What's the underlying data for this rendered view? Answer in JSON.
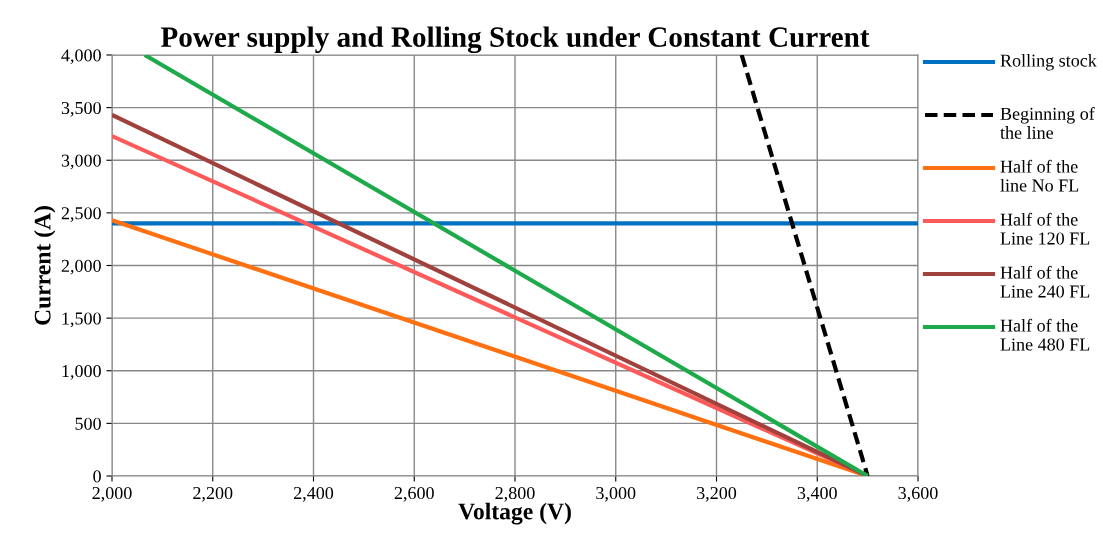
{
  "chart_data": {
    "type": "line",
    "title": "Power supply and Rolling Stock under Constant Current",
    "xlabel": "Voltage (V)",
    "ylabel": "Current (A)",
    "xlim": [
      2000,
      3600
    ],
    "xticks": [
      {
        "value": 2000,
        "label": "2,000"
      },
      {
        "value": 2200,
        "label": "2,200"
      },
      {
        "value": 2400,
        "label": "2,400"
      },
      {
        "value": 2600,
        "label": "2,600"
      },
      {
        "value": 2800,
        "label": "2,800"
      },
      {
        "value": 3000,
        "label": "3,000"
      },
      {
        "value": 3200,
        "label": "3,200"
      },
      {
        "value": 3400,
        "label": "3,400"
      },
      {
        "value": 3600,
        "label": "3,600"
      }
    ],
    "ylim": [
      0,
      4000
    ],
    "yticks": [
      0,
      500,
      {
        "value": 1000,
        "label": "1,000"
      },
      {
        "value": 1500,
        "label": "1,500"
      },
      {
        "value": 2000,
        "label": "2,000"
      },
      {
        "value": 2500,
        "label": "2,500"
      },
      {
        "value": 3000,
        "label": "3,000"
      },
      {
        "value": 3500,
        "label": "3,500"
      },
      {
        "value": 4000,
        "label": "4,000"
      }
    ],
    "grid": true,
    "legend": "right",
    "marker": "none",
    "series": [
      {
        "name": "Rolling stock",
        "color": "#0070c0",
        "x": [
          2000,
          3600
        ],
        "values": [
          2400,
          2400
        ]
      },
      {
        "name": "Beginning of the line",
        "color": "#000000",
        "line_style": "dashed",
        "x": [
          3250,
          3500
        ],
        "values": [
          4000,
          0
        ]
      },
      {
        "name": "Half of the line No FL",
        "color": "#ff7010",
        "x": [
          2000,
          3500
        ],
        "values": [
          2430,
          0
        ]
      },
      {
        "name": "Half of the Line 120 FL",
        "color": "#ff5a5a",
        "x": [
          2000,
          3500
        ],
        "values": [
          3230,
          0
        ]
      },
      {
        "name": "Half of the Line 240 FL",
        "color": "#a0413d",
        "x": [
          2000,
          3500
        ],
        "values": [
          3430,
          0
        ]
      },
      {
        "name": "Half of the Line 480 FL",
        "color": "#1daa4a",
        "x": [
          2065,
          3500
        ],
        "values": [
          4000,
          0
        ]
      }
    ]
  }
}
